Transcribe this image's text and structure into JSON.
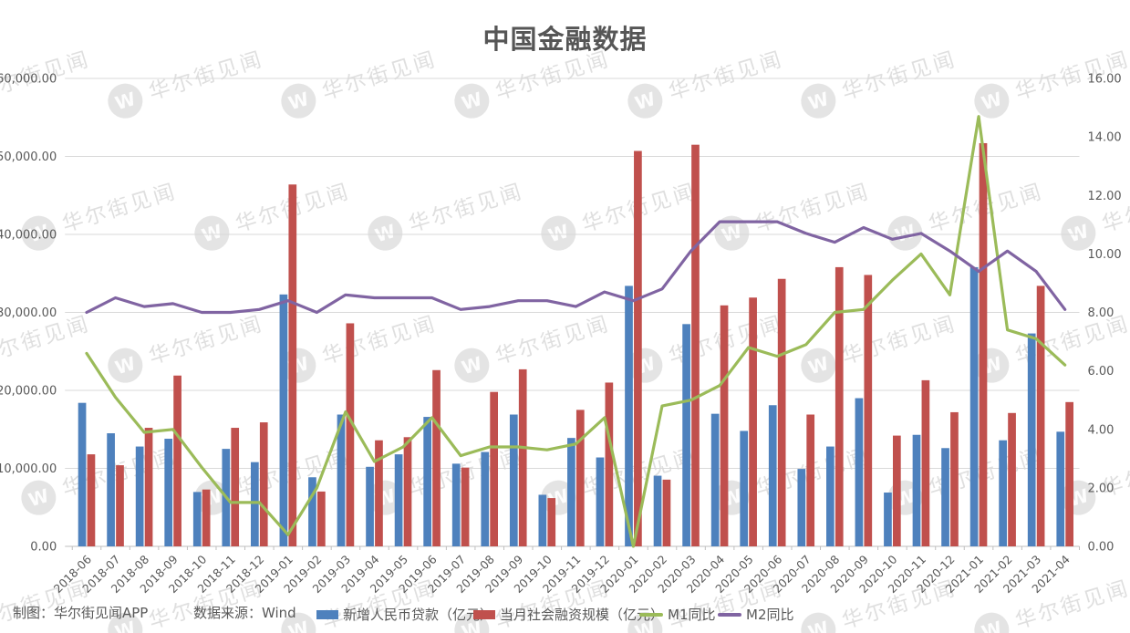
{
  "title": "中国金融数据",
  "watermark": {
    "text": "华尔街见闻",
    "badge_letter": "W"
  },
  "footer": {
    "credit": "制图：华尔街见闻APP",
    "source": "数据来源：Wind"
  },
  "axes": {
    "left_ticks": [
      "60,000.00",
      "50,000.00",
      "40,000.00",
      "30,000.00",
      "20,000.00",
      "10,000.00",
      "0.00"
    ],
    "right_ticks": [
      "16.00",
      "14.00",
      "12.00",
      "10.00",
      "8.00",
      "6.00",
      "4.00",
      "2.00",
      "0.00"
    ]
  },
  "colors": {
    "loans": "#4E81BD",
    "social": "#C0504D",
    "m1": "#9BBB59",
    "m2": "#8064A2",
    "grid": "#D9D9D9",
    "axis_line": "#BFBFBF",
    "text": "#595959",
    "watermark": "#8a8a8a"
  },
  "chart_data": {
    "type": "bar",
    "subtype": "combo bar+line, dual axis",
    "title": "中国金融数据",
    "grid": true,
    "legend_position": "bottom",
    "left_axis_range": [
      0,
      60000
    ],
    "left_axis_step": 10000,
    "right_axis_range": [
      0,
      16
    ],
    "right_axis_step": 2,
    "categories": [
      "2018-06",
      "2018-07",
      "2018-08",
      "2018-09",
      "2018-10",
      "2018-11",
      "2018-12",
      "2019-01",
      "2019-02",
      "2019-03",
      "2019-04",
      "2019-05",
      "2019-06",
      "2019-07",
      "2019-08",
      "2019-09",
      "2019-10",
      "2019-11",
      "2019-12",
      "2020-01",
      "2020-02",
      "2020-03",
      "2020-04",
      "2020-05",
      "2020-06",
      "2020-07",
      "2020-08",
      "2020-09",
      "2020-10",
      "2020-11",
      "2020-12",
      "2021-01",
      "2021-02",
      "2021-03",
      "2021-04"
    ],
    "series": [
      {
        "name": "新增人民币贷款（亿元）",
        "type": "bar",
        "axis": "left",
        "color": "#4E81BD",
        "values": [
          18400,
          14500,
          12800,
          13800,
          6970,
          12500,
          10800,
          32300,
          8858,
          16900,
          10200,
          11800,
          16600,
          10600,
          12100,
          16900,
          6613,
          13900,
          11400,
          33400,
          9057,
          28500,
          17000,
          14800,
          18100,
          9927,
          12800,
          19000,
          6898,
          14300,
          12600,
          35800,
          13600,
          27300,
          14700
        ]
      },
      {
        "name": "当月社会融资规模（亿元）",
        "type": "bar",
        "axis": "left",
        "color": "#C0504D",
        "values": [
          11800,
          10400,
          15200,
          21900,
          7288,
          15200,
          15900,
          46400,
          7030,
          28600,
          13600,
          14000,
          22600,
          10100,
          19800,
          22700,
          6189,
          17500,
          21000,
          50700,
          8554,
          51500,
          30900,
          31900,
          34300,
          16900,
          35800,
          34800,
          14200,
          21300,
          17200,
          51700,
          17100,
          33400,
          18500
        ]
      },
      {
        "name": "M1同比",
        "type": "line",
        "axis": "right",
        "color": "#9BBB59",
        "values": [
          6.6,
          5.1,
          3.9,
          4.0,
          2.7,
          1.5,
          1.5,
          0.4,
          2.0,
          4.6,
          2.9,
          3.4,
          4.4,
          3.1,
          3.4,
          3.4,
          3.3,
          3.5,
          4.4,
          0.0,
          4.8,
          5.0,
          5.5,
          6.8,
          6.5,
          6.9,
          8.0,
          8.1,
          9.1,
          10.0,
          8.6,
          14.7,
          7.4,
          7.1,
          6.2
        ]
      },
      {
        "name": "M2同比",
        "type": "line",
        "axis": "right",
        "color": "#8064A2",
        "values": [
          8.0,
          8.5,
          8.2,
          8.3,
          8.0,
          8.0,
          8.1,
          8.4,
          8.0,
          8.6,
          8.5,
          8.5,
          8.5,
          8.1,
          8.2,
          8.4,
          8.4,
          8.2,
          8.7,
          8.4,
          8.8,
          10.1,
          11.1,
          11.1,
          11.1,
          10.7,
          10.4,
          10.9,
          10.5,
          10.7,
          10.1,
          9.4,
          10.1,
          9.4,
          8.1
        ]
      }
    ]
  }
}
